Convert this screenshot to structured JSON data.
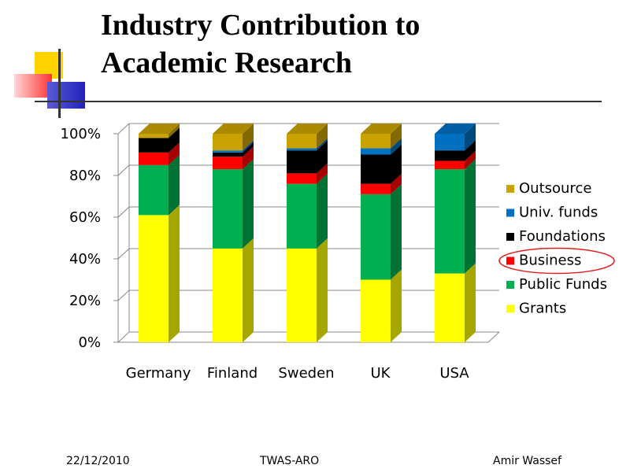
{
  "slide": {
    "title_line1": "Industry Contribution to",
    "title_line2": "Academic Research"
  },
  "footer": {
    "date": "22/12/2010",
    "center": "TWAS-ARO",
    "author": "Amir Wassef"
  },
  "colors": {
    "Grants": "#ffff00",
    "Public Funds": "#00b050",
    "Business": "#ff0000",
    "Foundations": "#000000",
    "Univ. funds": "#0070c0",
    "Outsource": "#c9a200"
  },
  "highlight": "Business",
  "chart_data": {
    "type": "bar",
    "stacked": true,
    "percent": true,
    "title": "",
    "xlabel": "",
    "ylabel": "",
    "ylim": [
      0,
      100
    ],
    "yticks": [
      "0%",
      "20%",
      "40%",
      "60%",
      "80%",
      "100%"
    ],
    "categories": [
      "Germany",
      "Finland",
      "Sweden",
      "UK",
      "USA"
    ],
    "series": [
      {
        "name": "Grants",
        "values": [
          61,
          45,
          45,
          30,
          33
        ]
      },
      {
        "name": "Public Funds",
        "values": [
          24,
          38,
          31,
          41,
          50
        ]
      },
      {
        "name": "Business",
        "values": [
          6,
          6,
          5,
          5,
          4
        ]
      },
      {
        "name": "Foundations",
        "values": [
          7,
          2,
          11,
          14,
          5
        ]
      },
      {
        "name": "Univ. funds",
        "values": [
          0,
          1,
          1,
          3,
          8
        ]
      },
      {
        "name": "Outsource",
        "values": [
          2,
          8,
          7,
          7,
          0
        ]
      }
    ],
    "legend": [
      "Outsource",
      "Univ. funds",
      "Foundations",
      "Business",
      "Public Funds",
      "Grants"
    ],
    "legend_position": "right"
  }
}
